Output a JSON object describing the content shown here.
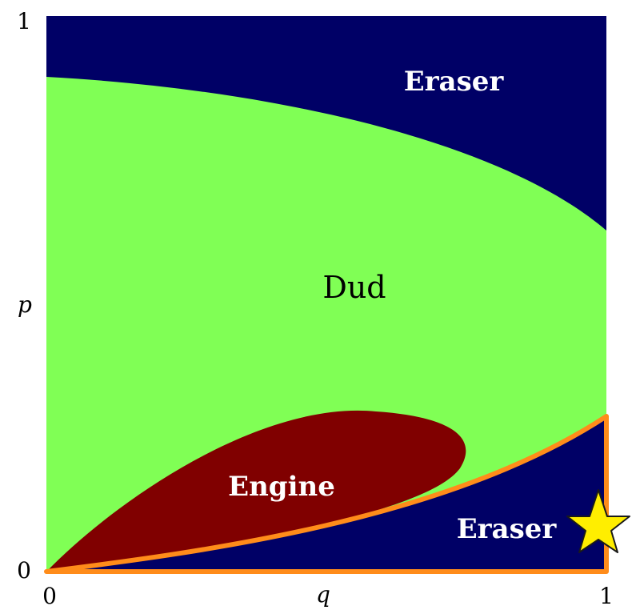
{
  "diagram": {
    "axes": {
      "x_label": "q",
      "y_label": "p",
      "x_tick_min": "0",
      "x_tick_max": "1",
      "y_tick_min": "0",
      "y_tick_max": "1"
    },
    "regions": {
      "eraser_top": "Eraser",
      "dud": "Dud",
      "engine": "Engine",
      "eraser_bottom": "Eraser"
    },
    "colors": {
      "eraser": "#000066",
      "dud": "#80ff55",
      "engine": "#800000",
      "highlight_outline": "#ff8c1a",
      "star": "#ffee00"
    },
    "marker": "star-icon"
  }
}
